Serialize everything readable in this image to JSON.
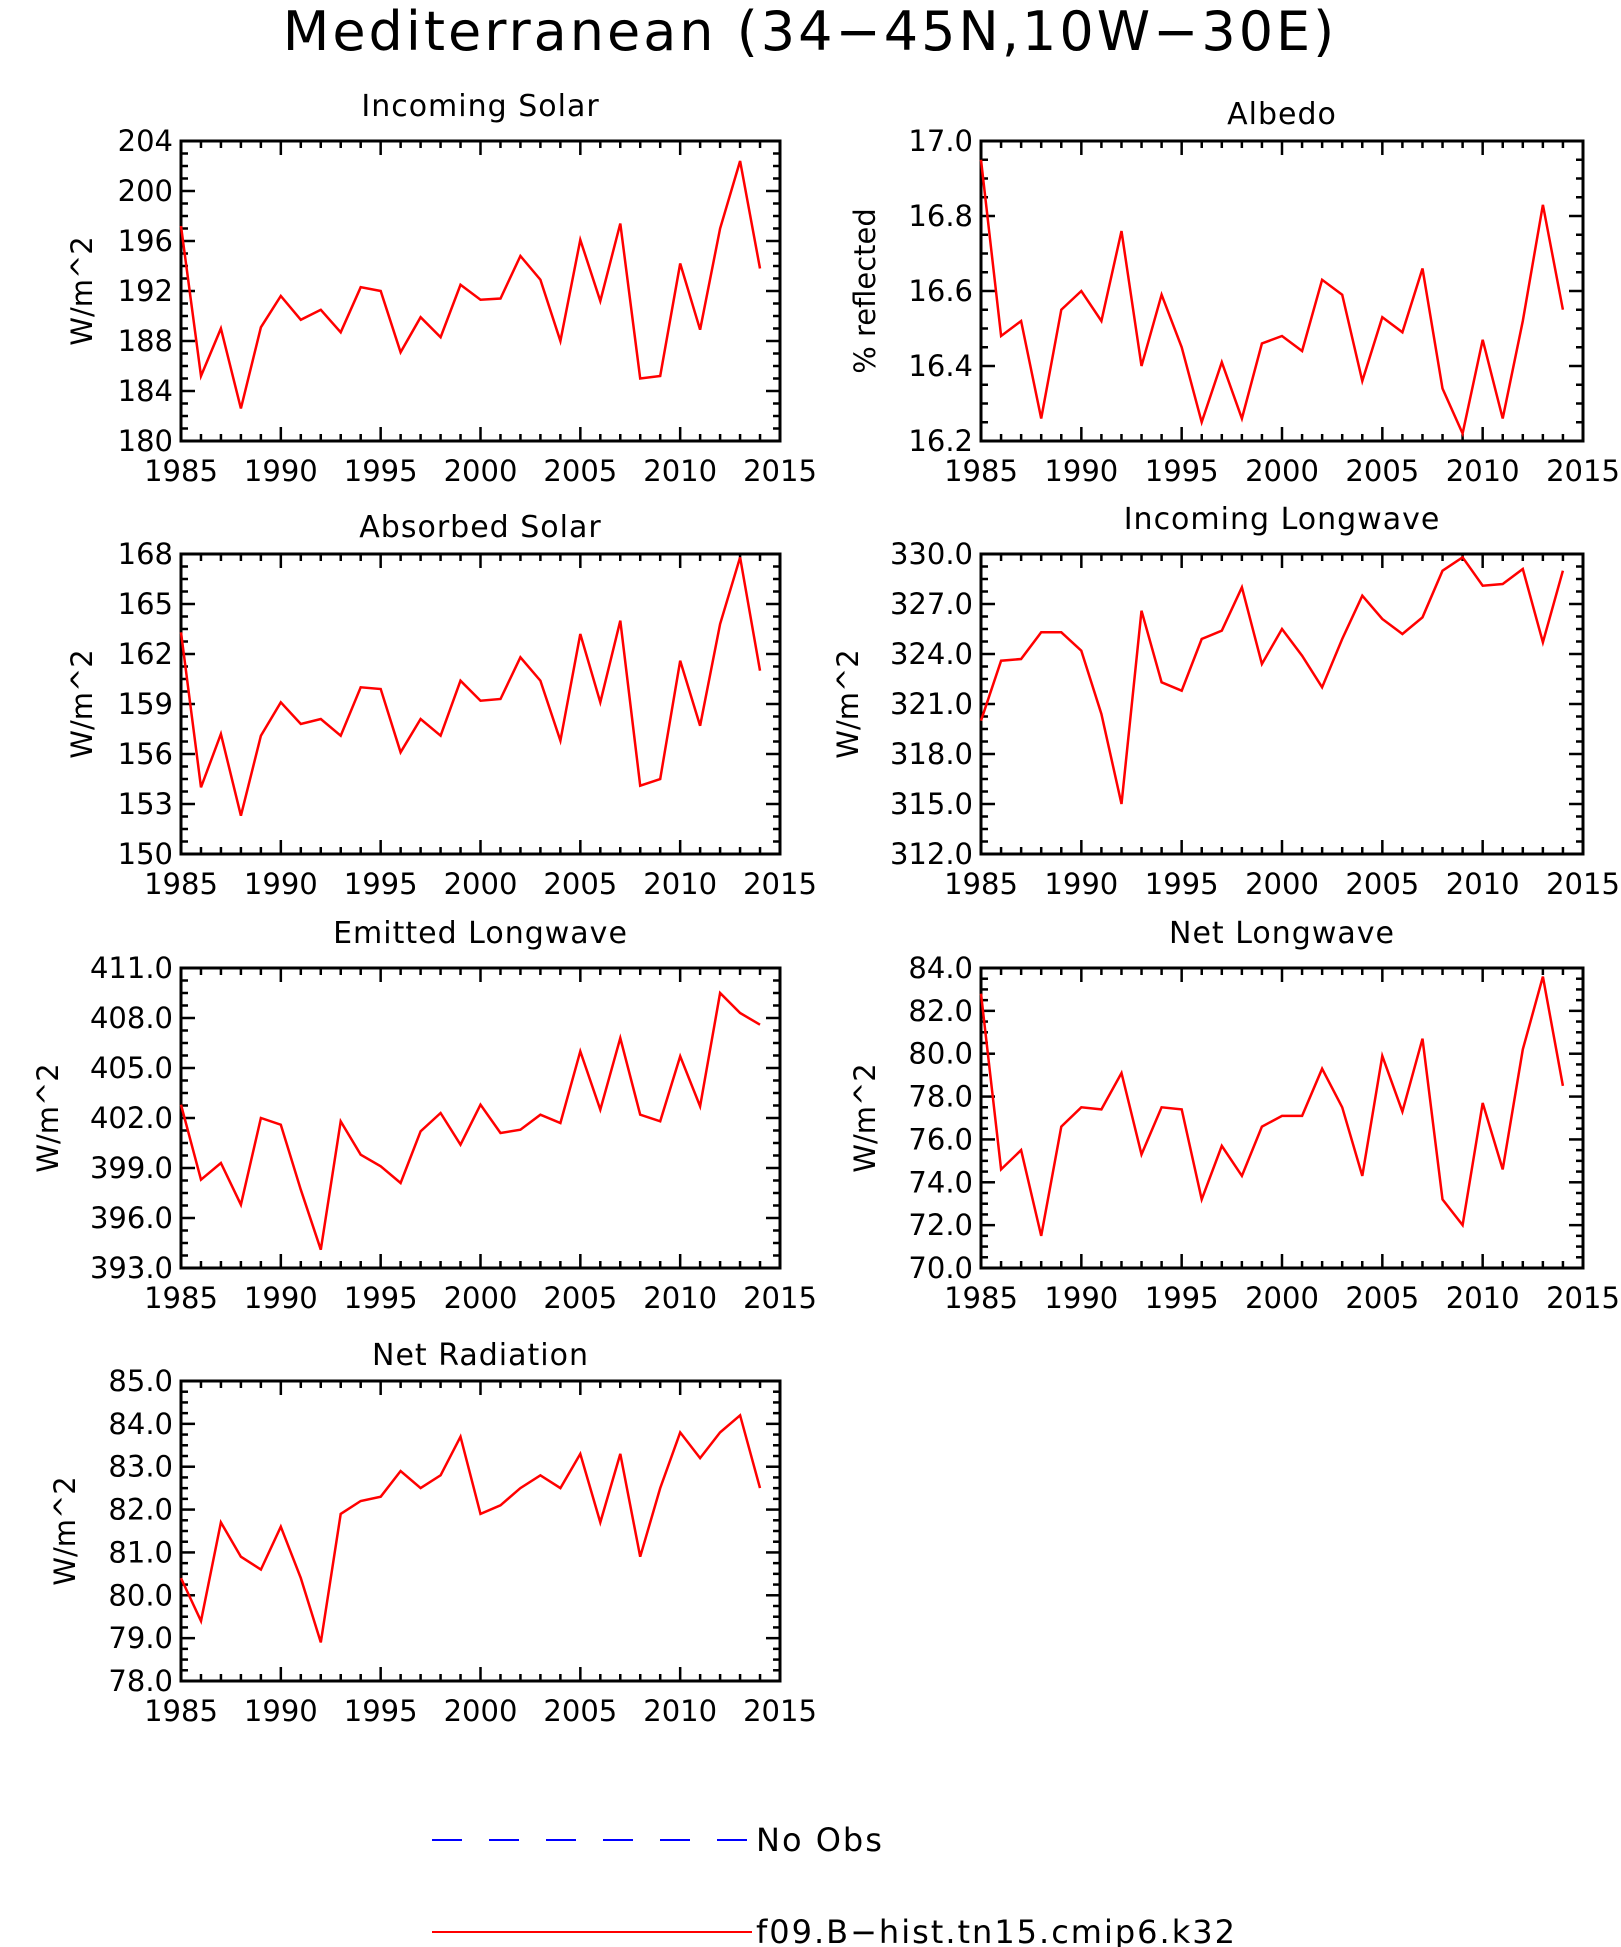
{
  "title": "Mediterranean (34−45N,10W−30E)",
  "colors": {
    "model": "#ff0000",
    "obs": "#0000ff"
  },
  "legend": [
    {
      "label": "No Obs",
      "style": "dashed",
      "color": "#0000ff"
    },
    {
      "label": "f09.B−hist.tn15.cmip6.k32",
      "style": "solid",
      "color": "#ff0000"
    }
  ],
  "chart_data": [
    {
      "type": "line",
      "title": "Incoming Solar",
      "ylabel": "W/m^2",
      "xlim": [
        1985,
        2015
      ],
      "ylim": [
        180,
        204
      ],
      "xticks": [
        "1985",
        "1990",
        "1995",
        "2000",
        "2005",
        "2010",
        "2015"
      ],
      "yticks": [
        "180",
        "184",
        "188",
        "192",
        "196",
        "200",
        "204"
      ],
      "x": [
        1985,
        1986,
        1987,
        1988,
        1989,
        1990,
        1991,
        1992,
        1993,
        1994,
        1995,
        1996,
        1997,
        1998,
        1999,
        2000,
        2001,
        2002,
        2003,
        2004,
        2005,
        2006,
        2007,
        2008,
        2009,
        2010,
        2011,
        2012,
        2013,
        2014
      ],
      "series": [
        {
          "name": "f09.B−hist.tn15.cmip6.k32",
          "values": [
            197.2,
            185.2,
            189.0,
            182.6,
            189.1,
            191.6,
            189.7,
            190.5,
            188.7,
            192.3,
            192.0,
            187.1,
            189.9,
            188.3,
            192.5,
            191.3,
            191.4,
            194.8,
            192.9,
            188.0,
            196.1,
            191.2,
            197.4,
            185.0,
            185.2,
            194.2,
            188.9,
            197.0,
            202.4,
            193.8
          ]
        }
      ]
    },
    {
      "type": "line",
      "title": "Albedo",
      "ylabel": "% reflected",
      "xlim": [
        1985,
        2015
      ],
      "ylim": [
        16.2,
        17.0
      ],
      "xticks": [
        "1985",
        "1990",
        "1995",
        "2000",
        "2005",
        "2010",
        "2015"
      ],
      "yticks": [
        "16.2",
        "16.4",
        "16.6",
        "16.8",
        "17.0"
      ],
      "x": [
        1985,
        1986,
        1987,
        1988,
        1989,
        1990,
        1991,
        1992,
        1993,
        1994,
        1995,
        1996,
        1997,
        1998,
        1999,
        2000,
        2001,
        2002,
        2003,
        2004,
        2005,
        2006,
        2007,
        2008,
        2009,
        2010,
        2011,
        2012,
        2013,
        2014
      ],
      "series": [
        {
          "name": "f09.B−hist.tn15.cmip6.k32",
          "values": [
            16.95,
            16.48,
            16.52,
            16.26,
            16.55,
            16.6,
            16.52,
            16.76,
            16.4,
            16.59,
            16.45,
            16.25,
            16.41,
            16.26,
            16.46,
            16.48,
            16.44,
            16.63,
            16.59,
            16.36,
            16.53,
            16.49,
            16.66,
            16.34,
            16.22,
            16.47,
            16.26,
            16.52,
            16.83,
            16.55
          ]
        }
      ]
    },
    {
      "type": "line",
      "title": "Absorbed Solar",
      "ylabel": "W/m^2",
      "xlim": [
        1985,
        2015
      ],
      "ylim": [
        150,
        168
      ],
      "xticks": [
        "1985",
        "1990",
        "1995",
        "2000",
        "2005",
        "2010",
        "2015"
      ],
      "yticks": [
        "150",
        "153",
        "156",
        "159",
        "162",
        "165",
        "168"
      ],
      "x": [
        1985,
        1986,
        1987,
        1988,
        1989,
        1990,
        1991,
        1992,
        1993,
        1994,
        1995,
        1996,
        1997,
        1998,
        1999,
        2000,
        2001,
        2002,
        2003,
        2004,
        2005,
        2006,
        2007,
        2008,
        2009,
        2010,
        2011,
        2012,
        2013,
        2014
      ],
      "series": [
        {
          "name": "f09.B−hist.tn15.cmip6.k32",
          "values": [
            163.3,
            154.0,
            157.2,
            152.3,
            157.1,
            159.1,
            157.8,
            158.1,
            157.1,
            160.0,
            159.9,
            156.1,
            158.1,
            157.1,
            160.4,
            159.2,
            159.3,
            161.8,
            160.4,
            156.8,
            163.2,
            159.1,
            164.0,
            154.1,
            154.5,
            161.6,
            157.7,
            163.8,
            167.8,
            161.0
          ]
        }
      ]
    },
    {
      "type": "line",
      "title": "Incoming Longwave",
      "ylabel": "W/m^2",
      "xlim": [
        1985,
        2015
      ],
      "ylim": [
        312,
        330
      ],
      "xticks": [
        "1985",
        "1990",
        "1995",
        "2000",
        "2005",
        "2010",
        "2015"
      ],
      "yticks": [
        "312.0",
        "315.0",
        "318.0",
        "321.0",
        "324.0",
        "327.0",
        "330.0"
      ],
      "x": [
        1985,
        1986,
        1987,
        1988,
        1989,
        1990,
        1991,
        1992,
        1993,
        1994,
        1995,
        1996,
        1997,
        1998,
        1999,
        2000,
        2001,
        2002,
        2003,
        2004,
        2005,
        2006,
        2007,
        2008,
        2009,
        2010,
        2011,
        2012,
        2013,
        2014
      ],
      "series": [
        {
          "name": "f09.B−hist.tn15.cmip6.k32",
          "values": [
            320.0,
            323.6,
            323.7,
            325.3,
            325.3,
            324.2,
            320.4,
            315.0,
            326.6,
            322.3,
            321.8,
            324.9,
            325.4,
            328.0,
            323.4,
            325.5,
            323.9,
            322.0,
            324.9,
            327.5,
            326.1,
            325.2,
            326.2,
            329.0,
            329.8,
            328.1,
            328.2,
            329.1,
            324.7,
            329.0
          ]
        }
      ]
    },
    {
      "type": "line",
      "title": "Emitted Longwave",
      "ylabel": "W/m^2",
      "xlim": [
        1985,
        2015
      ],
      "ylim": [
        393,
        411
      ],
      "xticks": [
        "1985",
        "1990",
        "1995",
        "2000",
        "2005",
        "2010",
        "2015"
      ],
      "yticks": [
        "393.0",
        "396.0",
        "399.0",
        "402.0",
        "405.0",
        "408.0",
        "411.0"
      ],
      "x": [
        1985,
        1986,
        1987,
        1988,
        1989,
        1990,
        1991,
        1992,
        1993,
        1994,
        1995,
        1996,
        1997,
        1998,
        1999,
        2000,
        2001,
        2002,
        2003,
        2004,
        2005,
        2006,
        2007,
        2008,
        2009,
        2010,
        2011,
        2012,
        2013,
        2014
      ],
      "series": [
        {
          "name": "f09.B−hist.tn15.cmip6.k32",
          "values": [
            402.8,
            398.3,
            399.3,
            396.8,
            402.0,
            401.6,
            397.7,
            394.1,
            401.8,
            399.8,
            399.1,
            398.1,
            401.2,
            402.3,
            400.4,
            402.8,
            401.1,
            401.3,
            402.2,
            401.7,
            406.0,
            402.5,
            406.8,
            402.2,
            401.8,
            405.7,
            402.7,
            409.5,
            408.3,
            407.6
          ]
        }
      ]
    },
    {
      "type": "line",
      "title": "Net Longwave",
      "ylabel": "W/m^2",
      "xlim": [
        1985,
        2015
      ],
      "ylim": [
        70,
        84
      ],
      "xticks": [
        "1985",
        "1990",
        "1995",
        "2000",
        "2005",
        "2010",
        "2015"
      ],
      "yticks": [
        "70.0",
        "72.0",
        "74.0",
        "76.0",
        "78.0",
        "80.0",
        "82.0",
        "84.0"
      ],
      "x": [
        1985,
        1986,
        1987,
        1988,
        1989,
        1990,
        1991,
        1992,
        1993,
        1994,
        1995,
        1996,
        1997,
        1998,
        1999,
        2000,
        2001,
        2002,
        2003,
        2004,
        2005,
        2006,
        2007,
        2008,
        2009,
        2010,
        2011,
        2012,
        2013,
        2014
      ],
      "series": [
        {
          "name": "f09.B−hist.tn15.cmip6.k32",
          "values": [
            82.8,
            74.6,
            75.5,
            71.5,
            76.6,
            77.5,
            77.4,
            79.1,
            75.3,
            77.5,
            77.4,
            73.2,
            75.7,
            74.3,
            76.6,
            77.1,
            77.1,
            79.3,
            77.5,
            74.3,
            79.9,
            77.3,
            80.7,
            73.2,
            72.0,
            77.7,
            74.6,
            80.2,
            83.6,
            78.5
          ]
        }
      ]
    },
    {
      "type": "line",
      "title": "Net Radiation",
      "ylabel": "W/m^2",
      "xlim": [
        1985,
        2015
      ],
      "ylim": [
        78,
        85
      ],
      "xticks": [
        "1985",
        "1990",
        "1995",
        "2000",
        "2005",
        "2010",
        "2015"
      ],
      "yticks": [
        "78.0",
        "79.0",
        "80.0",
        "81.0",
        "82.0",
        "83.0",
        "84.0",
        "85.0"
      ],
      "x": [
        1985,
        1986,
        1987,
        1988,
        1989,
        1990,
        1991,
        1992,
        1993,
        1994,
        1995,
        1996,
        1997,
        1998,
        1999,
        2000,
        2001,
        2002,
        2003,
        2004,
        2005,
        2006,
        2007,
        2008,
        2009,
        2010,
        2011,
        2012,
        2013,
        2014
      ],
      "series": [
        {
          "name": "f09.B−hist.tn15.cmip6.k32",
          "values": [
            80.4,
            79.4,
            81.7,
            80.9,
            80.6,
            81.6,
            80.4,
            78.9,
            81.9,
            82.2,
            82.3,
            82.9,
            82.5,
            82.8,
            83.7,
            81.9,
            82.1,
            82.5,
            82.8,
            82.5,
            83.3,
            81.7,
            83.3,
            80.9,
            82.5,
            83.8,
            83.2,
            83.8,
            84.2,
            82.5
          ]
        }
      ]
    }
  ]
}
